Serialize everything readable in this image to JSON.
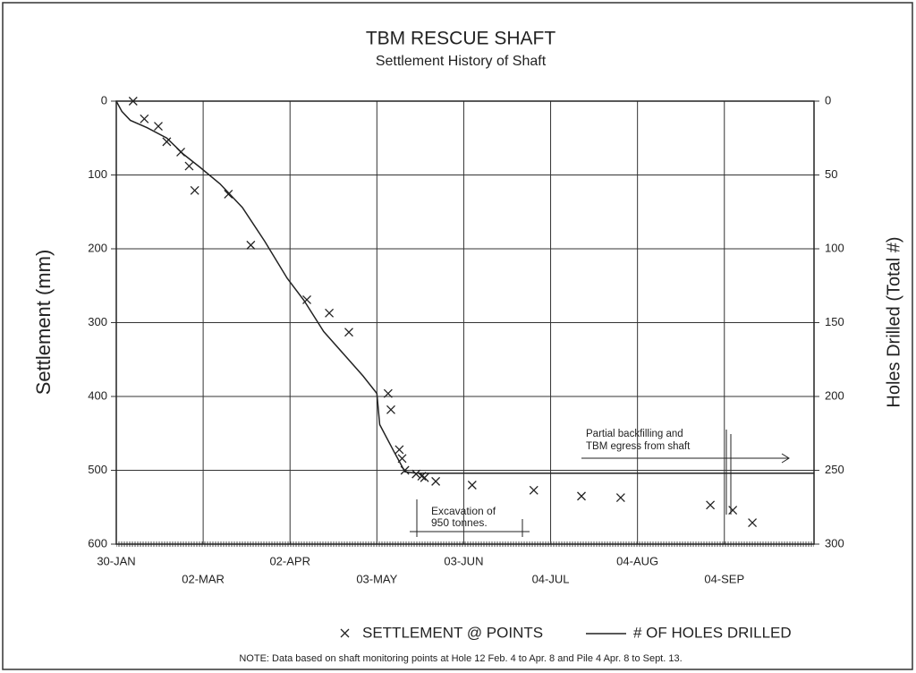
{
  "chart_data": {
    "type": "scatter",
    "title": "TBM RESCUE SHAFT",
    "subtitle": "Settlement History of Shaft",
    "ylabel": "Settlement (mm)",
    "y2label": "Holes Drilled (Total #)",
    "xlim": [
      0,
      249
    ],
    "xticks": [
      {
        "value": 0,
        "label": "30-JAN"
      },
      {
        "value": 31,
        "label": "02-MAR"
      },
      {
        "value": 62,
        "label": "02-APR"
      },
      {
        "value": 93,
        "label": "03-MAY"
      },
      {
        "value": 124,
        "label": "03-JUN"
      },
      {
        "value": 155,
        "label": "04-JUL"
      },
      {
        "value": 186,
        "label": "04-AUG"
      },
      {
        "value": 217,
        "label": "04-SEP"
      }
    ],
    "ylim": [
      600,
      0
    ],
    "yticks": [
      0,
      100,
      200,
      300,
      400,
      500,
      600
    ],
    "y2lim": [
      300,
      0
    ],
    "y2ticks": [
      0,
      50,
      100,
      150,
      200,
      250,
      300
    ],
    "grid": true,
    "series": [
      {
        "name": "SETTLEMENT @ POINTS",
        "type": "scatter",
        "color": "#222222",
        "x": [
          6,
          10,
          15,
          18,
          23,
          26,
          28,
          40,
          48,
          68,
          76,
          83,
          97,
          98,
          101,
          102,
          103,
          107,
          109,
          110,
          114,
          127,
          149,
          166,
          180,
          212,
          220,
          227
        ],
        "values": [
          0,
          24,
          34,
          55,
          69,
          88,
          121,
          126,
          195,
          269,
          287,
          313,
          396,
          418,
          472,
          484,
          500,
          505,
          508,
          510,
          515,
          520,
          527,
          535,
          537,
          547,
          554,
          571
        ]
      },
      {
        "name": "# OF HOLES DRILLED",
        "type": "line",
        "axis": "y2",
        "color": "#222222",
        "x": [
          0,
          2,
          5,
          11,
          18,
          24,
          30,
          37,
          45,
          53,
          61,
          67,
          74,
          81,
          88,
          93,
          94,
          99,
          103,
          107,
          249
        ],
        "values": [
          0,
          7,
          13,
          18,
          25,
          36,
          45,
          56,
          72,
          95,
          120,
          135,
          156,
          171,
          186,
          198,
          219,
          237,
          251,
          252,
          252
        ]
      }
    ],
    "annotations": [
      "Excavation of",
      "950 tonnes.",
      "Partial backfilling and",
      "TBM egress from shaft"
    ],
    "note": "NOTE: Data based on shaft monitoring points at Hole 12 Feb. 4 to Apr. 8 and Pile 4 Apr. 8 to Sept. 13."
  }
}
